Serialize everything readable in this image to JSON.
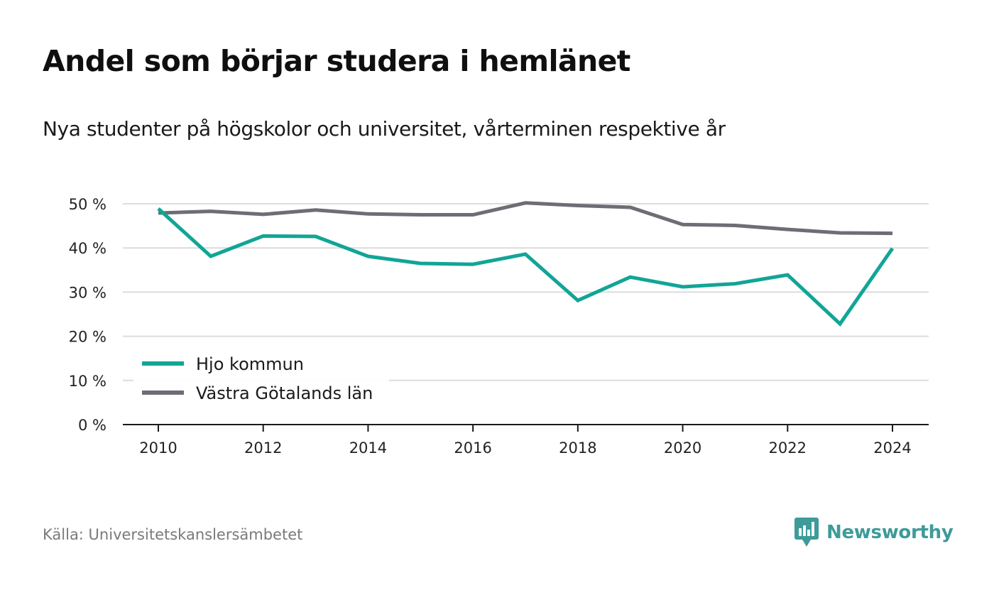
{
  "header": {
    "title": "Andel som börjar studera i hemlänet",
    "subtitle": "Nya studenter på högskolor och universitet, vårterminen respektive år"
  },
  "footer": {
    "source": "Källa: Universitetskanslersämbetet",
    "brand": "Newsworthy",
    "brand_color": "#3d9b9a"
  },
  "chart_data": {
    "type": "line",
    "x": [
      2010,
      2011,
      2012,
      2013,
      2014,
      2015,
      2016,
      2017,
      2018,
      2019,
      2020,
      2021,
      2022,
      2023,
      2024
    ],
    "xticks": [
      2010,
      2012,
      2014,
      2016,
      2018,
      2020,
      2022,
      2024
    ],
    "yticks": [
      0,
      10,
      20,
      30,
      40,
      50
    ],
    "ytick_suffix": " %",
    "ylim": [
      0,
      50
    ],
    "grid": true,
    "legend_position": "bottom-left",
    "series": [
      {
        "name": "Hjo kommun",
        "color": "#11a596",
        "values": [
          48.9,
          38.1,
          42.7,
          42.6,
          38.1,
          36.5,
          36.3,
          38.6,
          28.1,
          33.4,
          31.2,
          31.9,
          33.9,
          22.8,
          39.9
        ]
      },
      {
        "name": "Västra Götalands län",
        "color": "#6e6d75",
        "values": [
          47.9,
          48.3,
          47.6,
          48.6,
          47.7,
          47.5,
          47.5,
          50.2,
          49.6,
          49.2,
          45.3,
          45.1,
          44.2,
          43.4,
          43.3
        ]
      }
    ]
  }
}
